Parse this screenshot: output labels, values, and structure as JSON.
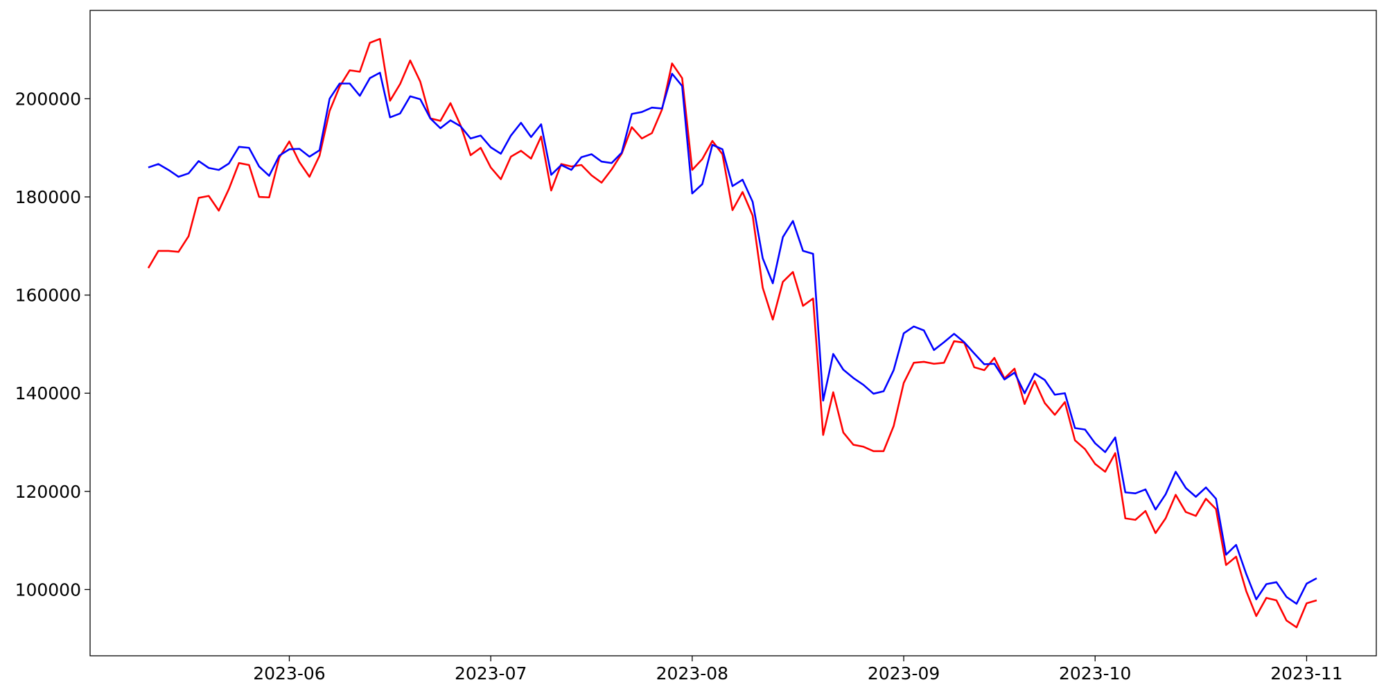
{
  "chart_data": {
    "type": "line",
    "categories": [
      null,
      null,
      null,
      null,
      null,
      null,
      null,
      null,
      null,
      null,
      null,
      null,
      null,
      null,
      "2023-06",
      null,
      null,
      null,
      null,
      null,
      null,
      null,
      null,
      null,
      null,
      null,
      null,
      null,
      null,
      null,
      null,
      null,
      null,
      null,
      "2023-07",
      null,
      null,
      null,
      null,
      null,
      null,
      null,
      null,
      null,
      null,
      null,
      null,
      null,
      null,
      null,
      null,
      null,
      null,
      null,
      "2023-08",
      null,
      null,
      null,
      null,
      null,
      null,
      null,
      null,
      null,
      null,
      null,
      null,
      null,
      null,
      null,
      null,
      null,
      null,
      null,
      null,
      "2023-09",
      null,
      null,
      null,
      null,
      null,
      null,
      null,
      null,
      null,
      null,
      null,
      null,
      null,
      null,
      null,
      null,
      null,
      null,
      "2023-10",
      null,
      null,
      null,
      null,
      null,
      null,
      null,
      null,
      null,
      null,
      null,
      null,
      null,
      null,
      null,
      null,
      null,
      null,
      null,
      null,
      "2023-11",
      null
    ],
    "series": [
      {
        "color": "red",
        "values": [
          165500,
          169000,
          169000,
          168800,
          172000,
          179800,
          180200,
          177200,
          181600,
          186900,
          186500,
          180000,
          179900,
          188000,
          191300,
          187100,
          184100,
          188400,
          197500,
          202500,
          205800,
          205500,
          211400,
          212200,
          199600,
          203000,
          207800,
          203500,
          196000,
          195500,
          199100,
          194600,
          188500,
          190000,
          186000,
          183600,
          188200,
          189400,
          187800,
          192300,
          181300,
          186700,
          186200,
          186500,
          184400,
          182900,
          185600,
          188800,
          194200,
          191900,
          193000,
          197800,
          207200,
          204200,
          185500,
          187700,
          191400,
          188700,
          177300,
          181000,
          176200,
          161500,
          155000,
          162700,
          164700,
          157800,
          159300,
          131500,
          140200,
          132000,
          129500,
          129100,
          128200,
          128200,
          133300,
          142100,
          146200,
          146400,
          146000,
          146200,
          150600,
          150300,
          145300,
          144700,
          147200,
          143000,
          145000,
          137800,
          142500,
          138000,
          135600,
          138200,
          130400,
          128600,
          125600,
          124000,
          127800,
          114500,
          114200,
          116000,
          111500,
          114500,
          119300,
          115800,
          115000,
          118500,
          116400,
          105000,
          106700,
          99700,
          94600,
          98300,
          97800,
          93700,
          92300,
          97200,
          97800
        ]
      },
      {
        "color": "blue",
        "values": [
          186000,
          186700,
          185500,
          184100,
          184800,
          187300,
          185900,
          185500,
          186800,
          190200,
          190000,
          186200,
          184300,
          188400,
          189700,
          189800,
          188200,
          189500,
          200000,
          203100,
          203100,
          200600,
          204200,
          205300,
          196200,
          197000,
          200500,
          199900,
          196000,
          194000,
          195600,
          194400,
          191900,
          192500,
          190100,
          188800,
          192500,
          195100,
          192200,
          194800,
          184500,
          186500,
          185500,
          188100,
          188700,
          187200,
          186900,
          189000,
          196900,
          197300,
          198200,
          198000,
          205100,
          202600,
          180700,
          182600,
          190600,
          189700,
          182200,
          183500,
          179000,
          167500,
          162400,
          171800,
          175100,
          169000,
          168400,
          138500,
          148000,
          144800,
          143100,
          141700,
          139900,
          140400,
          144700,
          152200,
          153600,
          152800,
          148800,
          150400,
          152100,
          150400,
          148100,
          145900,
          146000,
          142800,
          144200,
          140000,
          144000,
          142700,
          139700,
          140000,
          132900,
          132600,
          129800,
          128000,
          131000,
          119800,
          119600,
          120400,
          116300,
          119400,
          124000,
          120700,
          118900,
          120800,
          118500,
          107100,
          109100,
          103200,
          98000,
          101100,
          101500,
          98500,
          97100,
          101200,
          102300
        ]
      }
    ],
    "ylim": [
      86500,
      218000
    ],
    "yticks": [
      100000,
      120000,
      140000,
      160000,
      180000,
      200000
    ],
    "grid": false
  }
}
